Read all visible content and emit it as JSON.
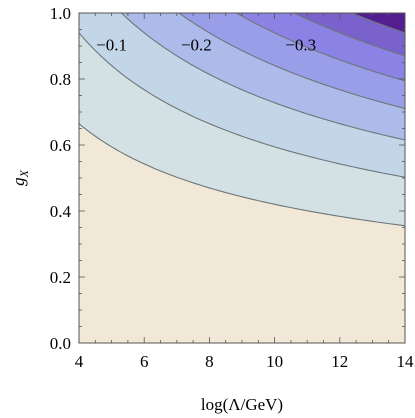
{
  "chart_data": {
    "type": "contour",
    "xlabel": "log(Λ/GeV)",
    "ylabel": "g",
    "ylabel_subscript": "X",
    "xlim": [
      4,
      14
    ],
    "ylim": [
      0,
      1
    ],
    "xticks": [
      4,
      6,
      8,
      10,
      12,
      14
    ],
    "xtick_labels": [
      "4",
      "6",
      "8",
      "10",
      "12",
      "14"
    ],
    "yticks": [
      0,
      0.2,
      0.4,
      0.6,
      0.8,
      1.0
    ],
    "ytick_labels": [
      "0.0",
      "0.2",
      "0.4",
      "0.6",
      "0.8",
      "1.0"
    ],
    "contour_levels": [
      -0.05,
      -0.1,
      -0.15,
      -0.2,
      -0.25,
      -0.3,
      -0.35
    ],
    "contour_label_texts": [
      "−0.1",
      "−0.2",
      "−0.3"
    ],
    "contour_label_positions": [
      {
        "x": 5.0,
        "y": 0.905
      },
      {
        "x": 7.6,
        "y": 0.905
      },
      {
        "x": 10.8,
        "y": 0.905
      }
    ],
    "model": "contour value = -k * g_X^2 * log(Lambda/GeV), k fitted to the drawn contours",
    "k": 0.0283,
    "fill_colors": [
      "#f2e8d7",
      "#d4e1e4",
      "#c3d6e8",
      "#acbbea",
      "#9a9ee9",
      "#8a82e4",
      "#7a62cc",
      "#521e90"
    ],
    "contour_line_color": "#6e7679"
  }
}
